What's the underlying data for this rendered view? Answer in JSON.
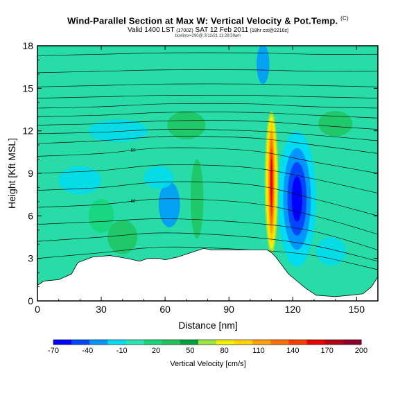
{
  "title": {
    "main": "Wind-Parallel Section at Max W: Vertical Velocity & Pot.Temp.",
    "main_mark": "(C)",
    "valid_line": "Valid 1400 LST",
    "valid_utc": "(1700Z)",
    "valid_date": "SAT 12 Feb 2011",
    "valid_run": "[18hr cst@2210z]",
    "attribution": "boxlimx=290@ 3/12/21 11:28:59am"
  },
  "chart_data": {
    "type": "heatmap",
    "title": "Wind-Parallel Section at Max W: Vertical Velocity & Pot.Temp.",
    "xlabel": "Distance [nm]",
    "ylabel": "Height [Kft MSL]",
    "xlim": [
      0,
      160
    ],
    "ylim": [
      0,
      18
    ],
    "xticks": [
      0,
      30,
      60,
      90,
      120,
      150
    ],
    "yticks": [
      0,
      3,
      6,
      9,
      12,
      15,
      18
    ],
    "colorbar": {
      "label": "Vertical Velocity [cm/s]",
      "ticks": [
        -70,
        -40,
        -10,
        20,
        50,
        80,
        110,
        140,
        170,
        200
      ],
      "colors": [
        "#0000ff",
        "#0046ff",
        "#0096ff",
        "#00dcf0",
        "#28e6b4",
        "#14d778",
        "#1ec35a",
        "#00a03c",
        "#9be63c",
        "#f0f000",
        "#ffd200",
        "#ffa000",
        "#ff6e00",
        "#ff3c00",
        "#e60000",
        "#b40014",
        "#8c0028"
      ]
    },
    "terrain_kft": [
      [
        0,
        1.1
      ],
      [
        3,
        1.4
      ],
      [
        10,
        1.5
      ],
      [
        16,
        1.9
      ],
      [
        19,
        2.7
      ],
      [
        26,
        3.1
      ],
      [
        34,
        3.2
      ],
      [
        42,
        3.0
      ],
      [
        48,
        2.8
      ],
      [
        52,
        3.0
      ],
      [
        57,
        3.0
      ],
      [
        60,
        2.9
      ],
      [
        66,
        3.1
      ],
      [
        72,
        3.4
      ],
      [
        78,
        3.7
      ],
      [
        82,
        3.6
      ],
      [
        90,
        3.6
      ],
      [
        100,
        3.6
      ],
      [
        108,
        3.6
      ],
      [
        110,
        3.4
      ],
      [
        112,
        3.1
      ],
      [
        115,
        2.5
      ],
      [
        118,
        1.9
      ],
      [
        122,
        1.4
      ],
      [
        126,
        0.9
      ],
      [
        131,
        0.4
      ],
      [
        140,
        0.3
      ],
      [
        147,
        0.4
      ],
      [
        153,
        0.5
      ],
      [
        157,
        1.0
      ],
      [
        160,
        1.7
      ]
    ],
    "updraft": {
      "x_nm": 110,
      "top_kft": 13.4,
      "bottom_kft": 3.3,
      "max_cm_s": 200
    },
    "downdraft": {
      "x_nm": 122,
      "center_kft": 7.2,
      "min_cm_s": -70
    },
    "isentropes": [
      {
        "label": "",
        "y": [
          3.0,
          3.4,
          3.8,
          3.6,
          3.2,
          2.2
        ]
      },
      {
        "label": "",
        "y": [
          4.2,
          4.5,
          4.8,
          4.5,
          3.9,
          2.8
        ]
      },
      {
        "label": "",
        "y": [
          5.4,
          5.6,
          5.8,
          5.5,
          4.9,
          3.6
        ]
      },
      {
        "label": "60",
        "y": [
          6.6,
          6.8,
          7.2,
          6.9,
          6.0,
          4.7
        ]
      },
      {
        "label": "",
        "y": [
          7.8,
          8.0,
          8.4,
          8.2,
          7.2,
          6.0
        ]
      },
      {
        "label": "",
        "y": [
          9.0,
          9.2,
          9.6,
          9.4,
          8.6,
          7.6
        ]
      },
      {
        "label": "50",
        "y": [
          10.2,
          10.4,
          10.8,
          10.6,
          9.8,
          9.0
        ]
      },
      {
        "label": "",
        "y": [
          11.1,
          11.3,
          11.6,
          11.5,
          11.0,
          10.4
        ]
      },
      {
        "label": "",
        "y": [
          11.8,
          11.9,
          12.1,
          12.0,
          11.7,
          11.3
        ]
      },
      {
        "label": "",
        "y": [
          12.4,
          12.5,
          12.7,
          12.7,
          12.4,
          12.1
        ]
      },
      {
        "label": "",
        "y": [
          13.0,
          13.1,
          13.3,
          13.3,
          13.1,
          12.9
        ]
      },
      {
        "label": "",
        "y": [
          13.6,
          13.7,
          13.9,
          13.9,
          13.7,
          13.6
        ]
      },
      {
        "label": "",
        "y": [
          14.3,
          14.4,
          14.5,
          14.5,
          14.4,
          14.3
        ]
      },
      {
        "label": "",
        "y": [
          15.1,
          15.2,
          15.3,
          15.3,
          15.2,
          15.1
        ]
      },
      {
        "label": "",
        "y": [
          16.1,
          16.2,
          16.3,
          16.3,
          16.2,
          16.2
        ]
      },
      {
        "label": "",
        "y": [
          17.3,
          17.4,
          17.5,
          17.5,
          17.4,
          17.4
        ]
      }
    ],
    "isentrope_x_nm": [
      0,
      30,
      60,
      100,
      130,
      160
    ]
  }
}
